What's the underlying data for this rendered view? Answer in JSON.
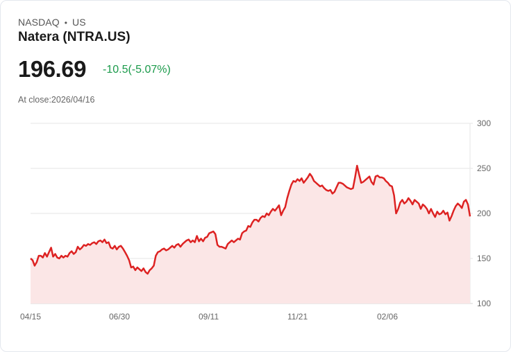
{
  "header": {
    "exchange": "NASDAQ",
    "region": "US",
    "separator": "•",
    "title": "Natera (NTRA.US)",
    "price": "196.69",
    "change": "-10.5(-5.07%)",
    "change_color": "#1a9a4a",
    "close_label": "At close:2026/04/16"
  },
  "chart_data": {
    "type": "area",
    "title": "Natera (NTRA.US)",
    "xlabel": "",
    "ylabel": "",
    "ylim": [
      100,
      300
    ],
    "yticks": [
      "300",
      "250",
      "200",
      "150",
      "100"
    ],
    "xticks": [
      "04/15",
      "06/30",
      "09/11",
      "11/21",
      "02/06"
    ],
    "grid": true,
    "line_color": "#dd2222",
    "fill_color": "#fbe6e6",
    "series": [
      {
        "name": "NTRA.US",
        "x_index_range": [
          0,
          250
        ],
        "values": [
          150,
          148,
          142,
          146,
          153,
          153,
          151,
          156,
          152,
          157,
          162,
          152,
          155,
          151,
          150,
          153,
          151,
          153,
          152,
          156,
          158,
          155,
          157,
          163,
          160,
          162,
          165,
          164,
          166,
          165,
          167,
          168,
          166,
          169,
          170,
          168,
          171,
          167,
          168,
          162,
          161,
          164,
          160,
          163,
          164,
          161,
          157,
          153,
          148,
          140,
          141,
          137,
          140,
          138,
          136,
          139,
          135,
          133,
          137,
          139,
          142,
          153,
          157,
          158,
          160,
          161,
          159,
          160,
          162,
          164,
          162,
          165,
          166,
          163,
          166,
          168,
          170,
          171,
          168,
          170,
          168,
          175,
          169,
          172,
          169,
          173,
          174,
          178,
          179,
          180,
          177,
          165,
          163,
          163,
          162,
          161,
          166,
          168,
          170,
          168,
          170,
          172,
          171,
          178,
          180,
          181,
          186,
          185,
          190,
          193,
          193,
          191,
          195,
          197,
          196,
          200,
          198,
          202,
          205,
          203,
          206,
          209,
          198,
          203,
          207,
          217,
          225,
          232,
          236,
          235,
          238,
          236,
          239,
          234,
          237,
          240,
          244,
          241,
          236,
          234,
          232,
          230,
          231,
          228,
          226,
          225,
          226,
          222,
          224,
          229,
          234,
          234,
          233,
          231,
          229,
          228,
          227,
          228,
          240,
          253,
          243,
          234,
          235,
          237,
          239,
          241,
          235,
          232,
          241,
          242,
          240,
          240,
          239,
          236,
          234,
          231,
          230,
          220,
          200,
          205,
          212,
          215,
          211,
          213,
          217,
          214,
          210,
          215,
          213,
          211,
          205,
          210,
          208,
          205,
          200,
          205,
          200,
          196,
          202,
          199,
          200,
          203,
          199,
          201,
          192,
          197,
          203,
          208,
          211,
          209,
          206,
          213,
          215,
          210
        ],
        "last_value": 196.69,
        "min_approx": 133,
        "max_approx": 253
      }
    ]
  }
}
